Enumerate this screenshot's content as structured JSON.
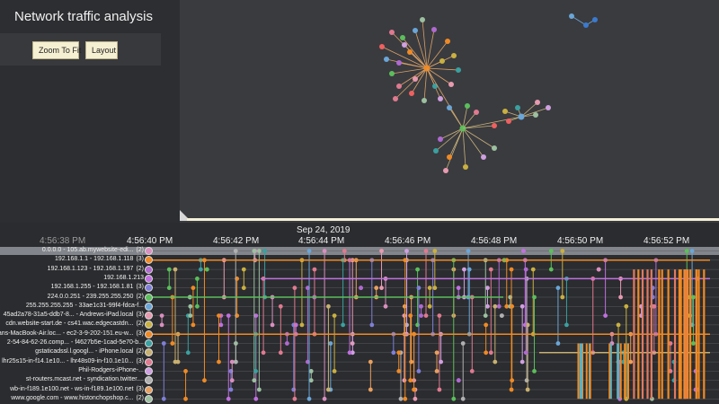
{
  "app": {
    "title": "Network traffic analysis"
  },
  "toolbar": {
    "zoom_to_fit_label": "Zoom To Fit",
    "layout_label": "Layout"
  },
  "timeline": {
    "date": "Sep 24, 2019",
    "ticks": [
      "4:56:38 PM",
      "4:56:40 PM",
      "4:56:42 PM",
      "4:56:44 PM",
      "4:56:46 PM",
      "4:56:48 PM",
      "4:56:50 PM",
      "4:56:52 PM"
    ],
    "rows": [
      {
        "label": "0.0.0.0 - 105.ab.mywebsite-edi...",
        "count": "(2)",
        "color": "#d98fbf"
      },
      {
        "label": "192.168.1.1 - 192.168.1.118",
        "count": "(3)",
        "color": "#f08a24"
      },
      {
        "label": "192.168.1.123 - 192.168.1.197",
        "count": "(2)",
        "color": "#b06ad0"
      },
      {
        "label": "192.168.1.213",
        "count": "",
        "color": "#c070e0"
      },
      {
        "label": "192.168.1.255 - 192.168.1.81",
        "count": "(3)",
        "color": "#7f7fd8"
      },
      {
        "label": "224.0.0.251 - 239.255.255.250",
        "count": "(2)",
        "color": "#5bbf5b"
      },
      {
        "label": "255.255.255.255 - 33ae1c31-99f4-fdca-f...",
        "count": "",
        "color": "#6aa6d8"
      },
      {
        "label": "45ad2a78-31a5-ddb7-8... - Andrews-iPad.local",
        "count": "(3)",
        "color": "#e89ab0"
      },
      {
        "label": "cdn.website-start.de - cs41.wac.edgecastdn...",
        "count": "(2)",
        "color": "#c9b040"
      },
      {
        "label": "ans-MacBook-Air.loc... - ec2-3-9-202-151.eu-w...",
        "count": "(3)",
        "color": "#f08a24"
      },
      {
        "label": "2-54-84-62-26.comp... - f4627b5e-1cad-5e70-b...",
        "count": "",
        "color": "#3aa0a0"
      },
      {
        "label": "gstaticadssl.l.googl... - iPhone.local",
        "count": "(2)",
        "color": "#c8b070"
      },
      {
        "label": "lhr25s15-in-f14.1e10... - lhr48s09-in-f10.1e10...",
        "count": "(3)",
        "color": "#e07a90"
      },
      {
        "label": "Phil-Rodgers-iPhone-...",
        "count": "",
        "color": "#d0a0e0"
      },
      {
        "label": "st-routers.mcast.net - syndication.twitter....",
        "count": "",
        "color": "#b0b0b0"
      },
      {
        "label": "wb-in-f189.1e100.net - ws-in-f189.1e100.net",
        "count": "(3)",
        "color": "#e8a060"
      },
      {
        "label": "www.google.com - www.histonchopshop.c...",
        "count": "(2)",
        "color": "#9cc0a0"
      }
    ]
  }
}
